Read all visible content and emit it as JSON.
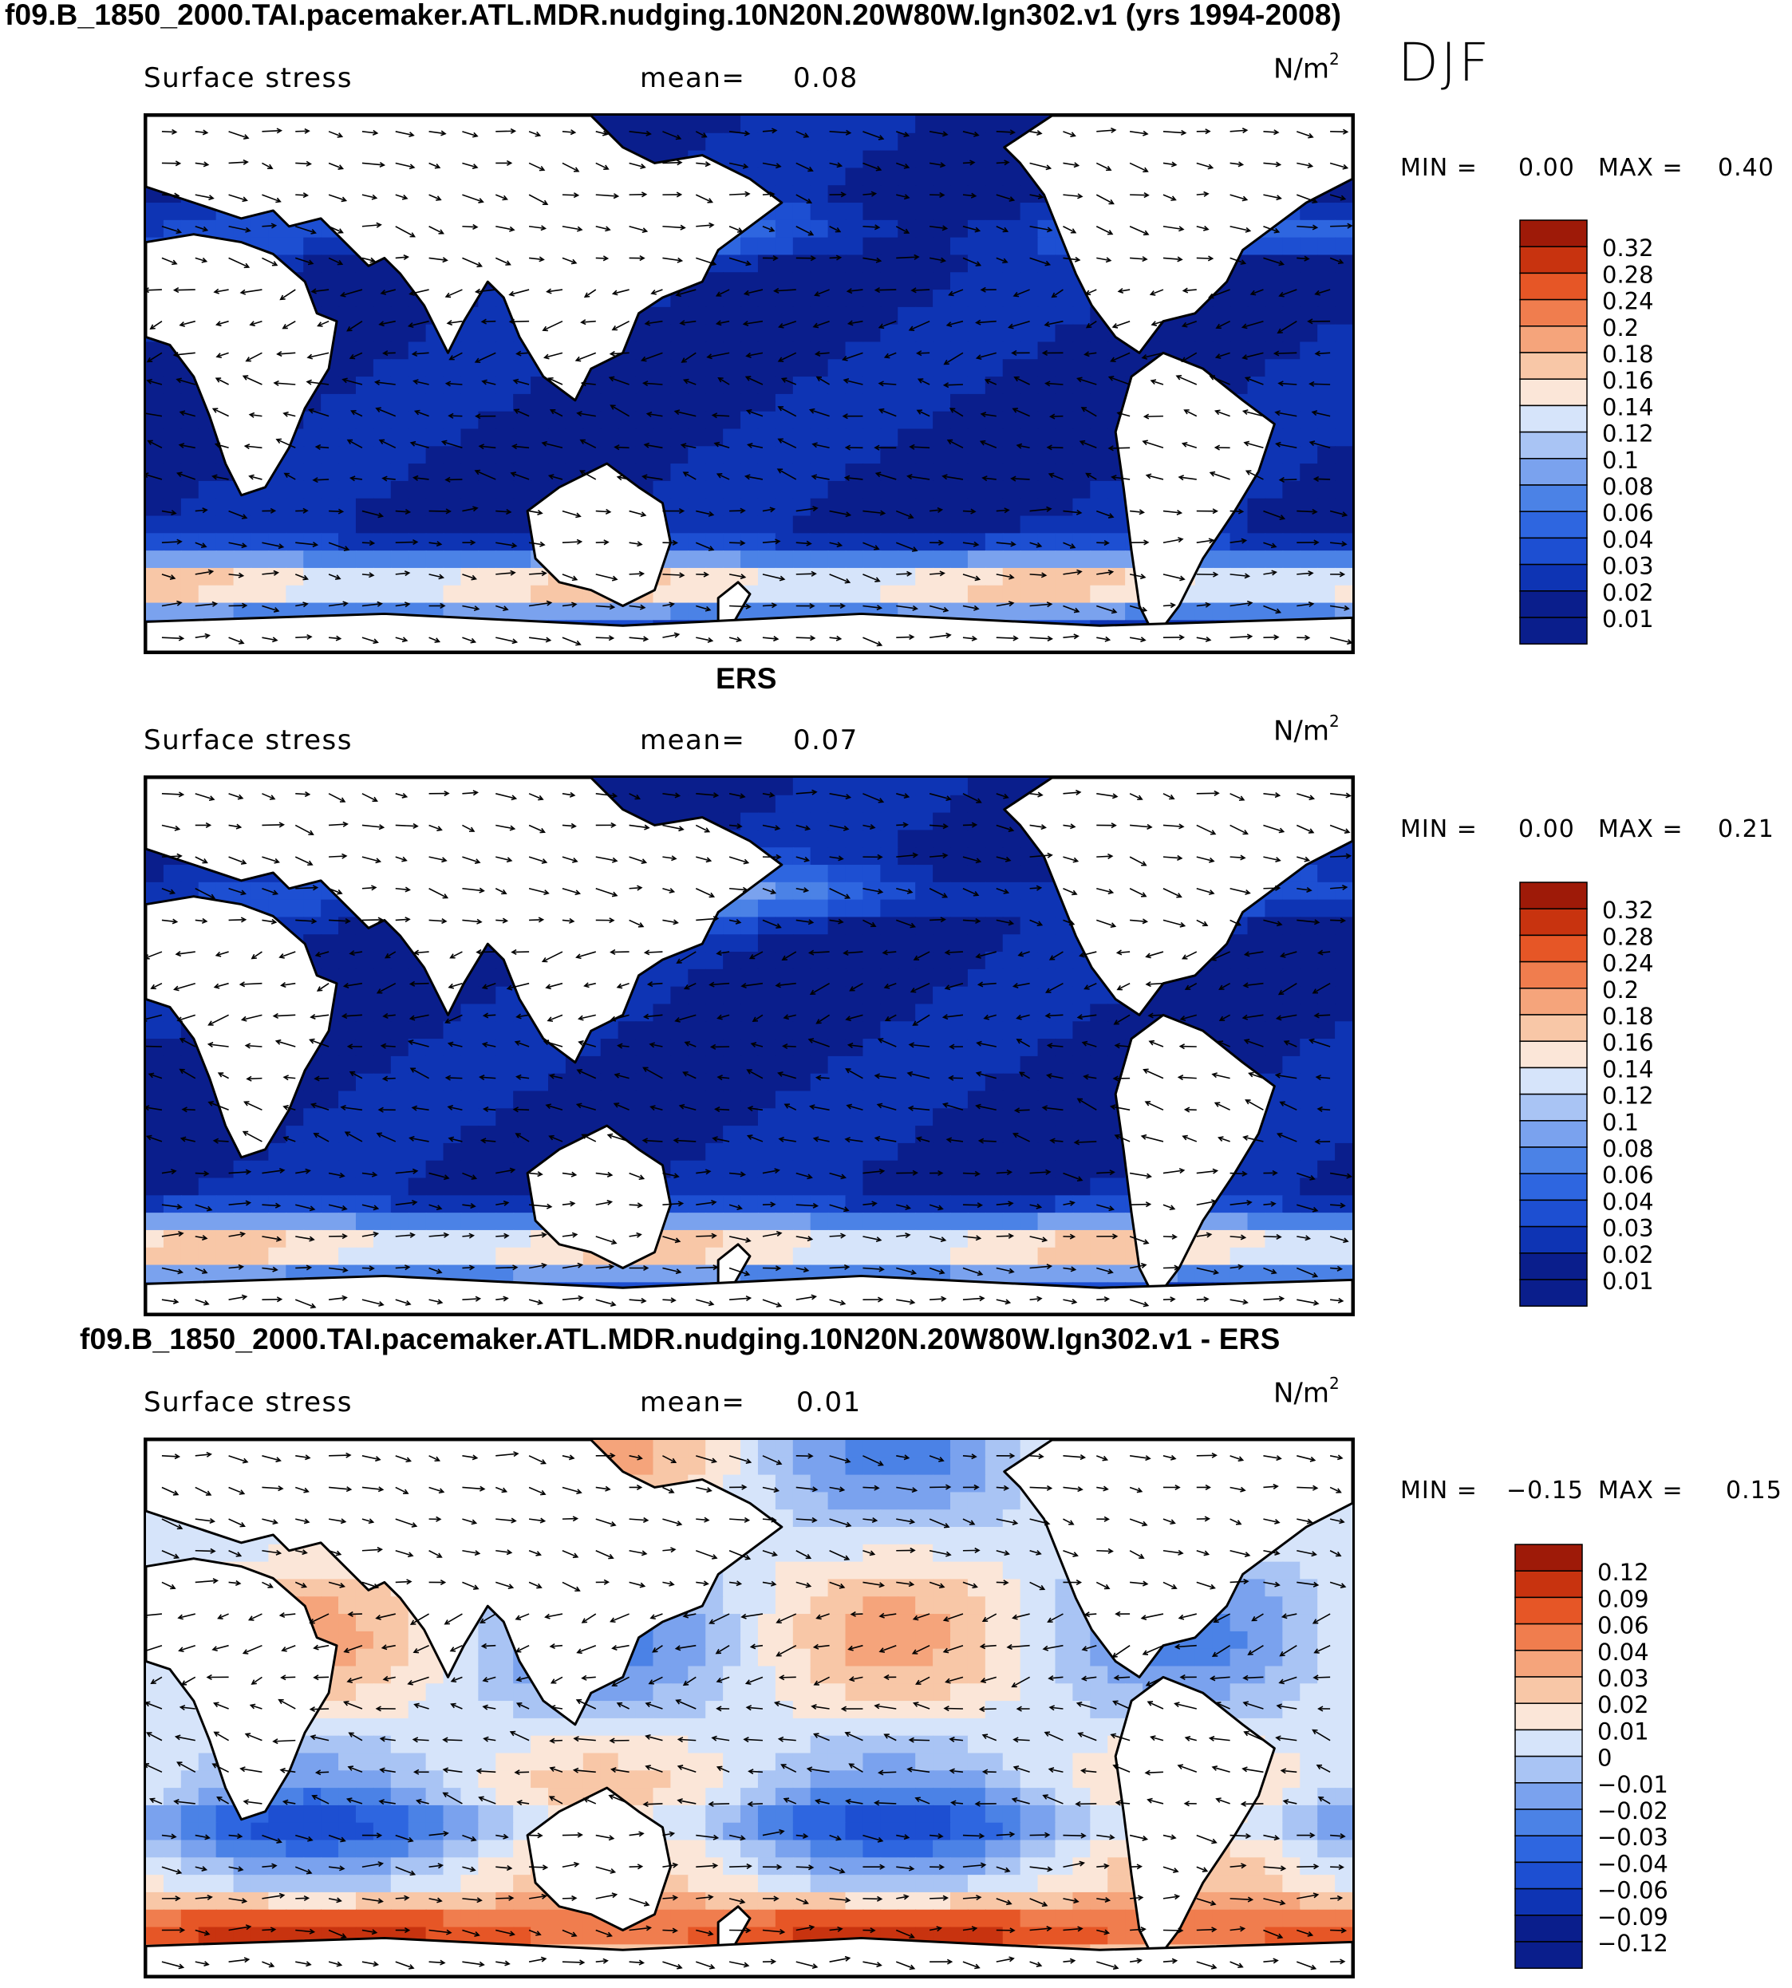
{
  "figure": {
    "season": "DJF",
    "colors": {
      "positive_scale": [
        "#0a1e8c",
        "#0e34b4",
        "#1d4fd2",
        "#2e66e0",
        "#4b82e6",
        "#7aa2ee",
        "#a9c4f4",
        "#d6e4fa",
        "#fbe6d8",
        "#f8c7a7",
        "#f5a47b",
        "#f07d4e",
        "#e65626",
        "#c8330f",
        "#9e1a08"
      ],
      "diff_scale": [
        "#0a1e8c",
        "#0e34b4",
        "#1d4fd2",
        "#2e66e0",
        "#4b82e6",
        "#7aa2ee",
        "#a9c4f4",
        "#d6e4fa",
        "#fbe6d8",
        "#f8c7a7",
        "#f5a47b",
        "#f07d4e",
        "#e65626",
        "#c8330f",
        "#9e1a08"
      ],
      "land": "#ffffff",
      "coast": "#000000",
      "vector": "#000000"
    },
    "panels": [
      {
        "id": "model",
        "title": "f09.B_1850_2000.TAI.pacemaker.ATL.MDR.nudging.10N20N.20W80W.lgn302.v1 (yrs 1994-2008)",
        "variable": "Surface stress",
        "mean_label": "mean=",
        "mean_value": "0.08",
        "units": "N/m",
        "units_exp": "2",
        "min_label": "MIN =",
        "min_value": "0.00",
        "max_label": "MAX =",
        "max_value": "0.40",
        "colorbar_labels": [
          "0.32",
          "0.28",
          "0.24",
          "0.2",
          "0.18",
          "0.16",
          "0.14",
          "0.12",
          "0.1",
          "0.08",
          "0.06",
          "0.04",
          "0.03",
          "0.02",
          "0.01"
        ]
      },
      {
        "id": "obs",
        "title": "ERS",
        "variable": "Surface stress",
        "mean_label": "mean=",
        "mean_value": "0.07",
        "units": "N/m",
        "units_exp": "2",
        "min_label": "MIN =",
        "min_value": "0.00",
        "max_label": "MAX =",
        "max_value": "0.21",
        "colorbar_labels": [
          "0.32",
          "0.28",
          "0.24",
          "0.2",
          "0.18",
          "0.16",
          "0.14",
          "0.12",
          "0.1",
          "0.08",
          "0.06",
          "0.04",
          "0.03",
          "0.02",
          "0.01"
        ]
      },
      {
        "id": "diff",
        "title": "f09.B_1850_2000.TAI.pacemaker.ATL.MDR.nudging.10N20N.20W80W.lgn302.v1 - ERS",
        "variable": "Surface stress",
        "mean_label": "mean=",
        "mean_value": "0.01",
        "units": "N/m",
        "units_exp": "2",
        "min_label": "MIN =",
        "min_value": "−0.15",
        "max_label": "MAX =",
        "max_value": "0.15",
        "colorbar_labels": [
          "0.12",
          "0.09",
          "0.06",
          "0.04",
          "0.03",
          "0.02",
          "0.01",
          "0",
          "−0.01",
          "−0.02",
          "−0.03",
          "−0.04",
          "−0.06",
          "−0.09",
          "−0.12"
        ]
      }
    ]
  }
}
